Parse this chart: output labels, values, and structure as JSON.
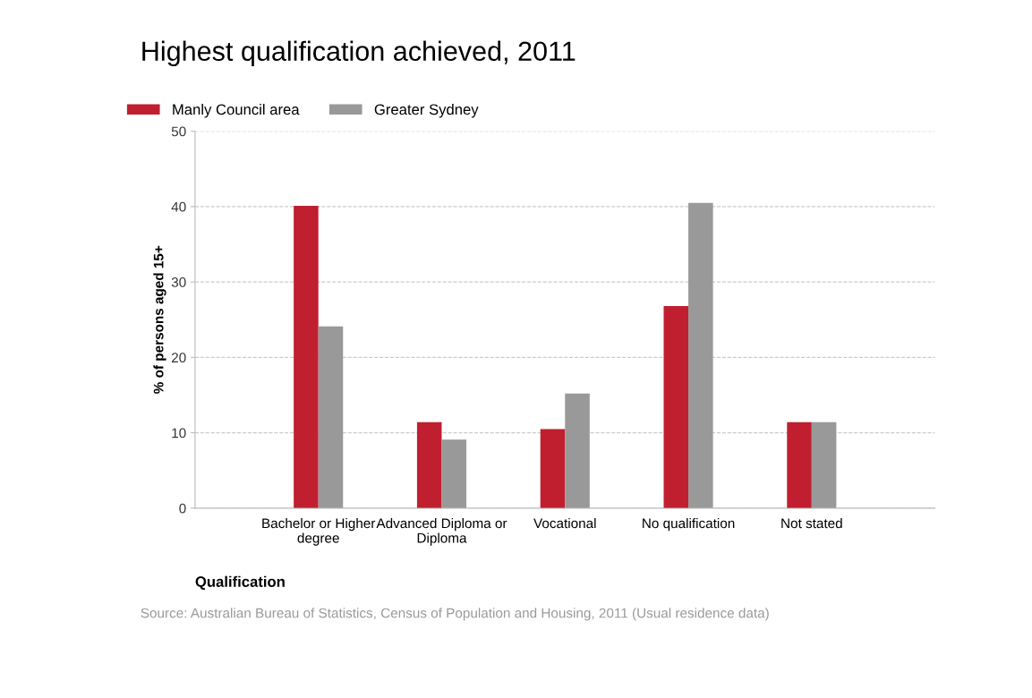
{
  "chart_data": {
    "type": "bar",
    "title": "Highest qualification achieved, 2011",
    "xlabel": "Qualification",
    "ylabel": "% of persons aged 15+",
    "categories": [
      "Bachelor or Higher\ndegree",
      "Advanced Diploma or\nDiploma",
      "Vocational",
      "No qualification",
      "Not stated"
    ],
    "series": [
      {
        "name": "Manly Council area",
        "color": "#c01f2f",
        "values": [
          40.1,
          11.4,
          10.5,
          26.8,
          11.4
        ]
      },
      {
        "name": "Greater Sydney",
        "color": "#999999",
        "values": [
          24.1,
          9.1,
          15.2,
          40.5,
          11.4
        ]
      }
    ],
    "ylim": [
      0,
      50
    ],
    "yticks": [
      0,
      10,
      20,
      30,
      40,
      50
    ],
    "grid": "y",
    "legend": "top left",
    "annotations": [
      "Source: Australian Bureau of Statistics, Census of Population and Housing, 2011 (Usual residence data)"
    ]
  }
}
